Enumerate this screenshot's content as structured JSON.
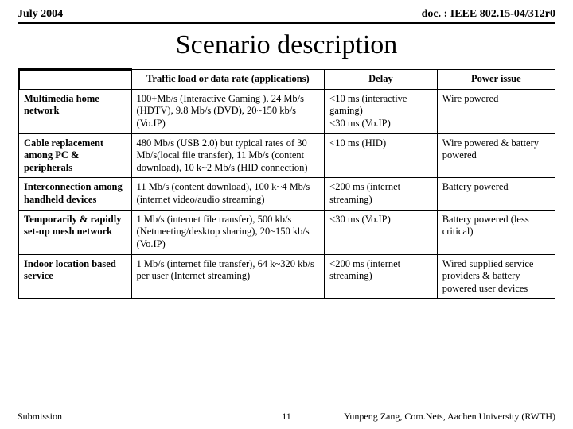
{
  "header": {
    "left": "July 2004",
    "right": "doc. : IEEE 802.15-04/312r0"
  },
  "title": "Scenario description",
  "table": {
    "columns": [
      "",
      "Traffic load or data rate (applications)",
      "Delay",
      "Power issue"
    ],
    "rows": [
      {
        "head": "Multimedia home network",
        "traffic": "100+Mb/s (Interactive Gaming ), 24 Mb/s (HDTV), 9.8 Mb/s (DVD), 20~150 kb/s (Vo.IP)",
        "delay": "<10 ms (interactive gaming)\n<30 ms (Vo.IP)",
        "power": "Wire powered"
      },
      {
        "head": "Cable replacement among PC & peripherals",
        "traffic": "480 Mb/s (USB 2.0) but typical rates of 30 Mb/s(local file transfer), 11 Mb/s (content download), 10 k~2 Mb/s (HID connection)",
        "delay": "<10 ms (HID)",
        "power": "Wire powered & battery powered"
      },
      {
        "head": "Interconnection among handheld devices",
        "traffic": "11 Mb/s (content download), 100 k~4 Mb/s (internet video/audio streaming)",
        "delay": "<200 ms (internet streaming)",
        "power": "Battery powered"
      },
      {
        "head": "Temporarily & rapidly set-up mesh network",
        "traffic": "1 Mb/s (internet file transfer), 500 kb/s (Netmeeting/desktop sharing), 20~150 kb/s (Vo.IP)",
        "delay": "<30 ms (Vo.IP)",
        "power": "Battery powered (less critical)"
      },
      {
        "head": "Indoor location based service",
        "traffic": "1 Mb/s (internet file transfer), 64 k~320 kb/s per user (Internet streaming)",
        "delay": "<200 ms (internet streaming)",
        "power": "Wired supplied service providers & battery powered user devices"
      }
    ]
  },
  "footer": {
    "left": "Submission",
    "page": "11",
    "right": "Yunpeng Zang, Com.Nets, Aachen University (RWTH)"
  }
}
